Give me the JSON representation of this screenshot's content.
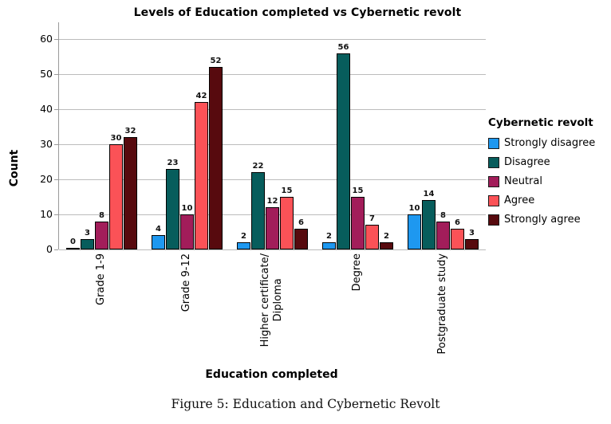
{
  "caption": "Figure 5: Education and Cybernetic Revolt",
  "chart_data": {
    "type": "bar",
    "title": "Levels of Education completed vs Cybernetic revolt",
    "xlabel": "Education completed",
    "ylabel": "Count",
    "ylim": [
      0,
      60
    ],
    "yticks": [
      0,
      10,
      20,
      30,
      40,
      50,
      60
    ],
    "grid": true,
    "show_values": true,
    "legend_title": "Cybernetic revolt",
    "legend_position": "right",
    "categories": [
      "Grade 1-9",
      "Grade 9-12",
      "Higher certificate/\nDiploma",
      "Degree",
      "Postgraduate study"
    ],
    "series": [
      {
        "name": "Strongly disagree",
        "color": "#1E98F0",
        "values": [
          0,
          4,
          2,
          2,
          10
        ]
      },
      {
        "name": "Disagree",
        "color": "#075D5C",
        "values": [
          3,
          23,
          22,
          56,
          14
        ]
      },
      {
        "name": "Neutral",
        "color": "#A21D5A",
        "values": [
          8,
          10,
          12,
          15,
          8
        ]
      },
      {
        "name": "Agree",
        "color": "#FB5257",
        "values": [
          30,
          42,
          15,
          7,
          6
        ]
      },
      {
        "name": "Strongly agree",
        "color": "#570A0E",
        "values": [
          32,
          52,
          6,
          2,
          3
        ]
      }
    ]
  }
}
